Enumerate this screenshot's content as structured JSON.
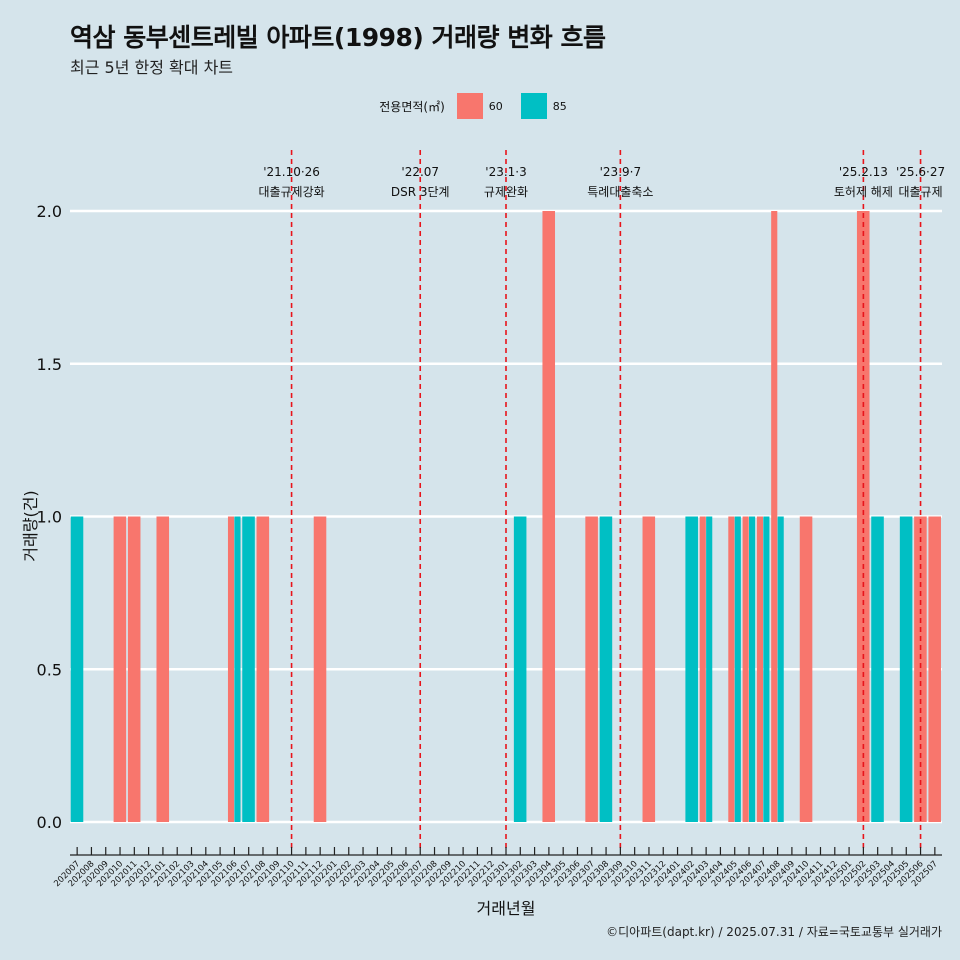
{
  "title": "역삼 동부센트레빌 아파트(1998) 거래량 변화 흐름",
  "subtitle": "최근 5년 한정 확대 차트",
  "caption": "©디아파트(dapt.kr) / 2025.07.31 / 자료=국토교통부 실거래가",
  "legend": {
    "title": "전용면적(㎡)",
    "items": [
      {
        "label": "60",
        "color": "#f8766d"
      },
      {
        "label": "85",
        "color": "#00bfc4"
      }
    ]
  },
  "chart_data": {
    "type": "bar",
    "xlabel": "거래년월",
    "ylabel": "거래량(건)",
    "ylim": [
      0,
      2
    ],
    "yticks": [
      "0.0",
      "0.5",
      "1.0",
      "1.5",
      "2.0"
    ],
    "categories": [
      "202007",
      "202008",
      "202009",
      "202010",
      "202011",
      "202012",
      "202101",
      "202102",
      "202103",
      "202104",
      "202105",
      "202106",
      "202107",
      "202108",
      "202109",
      "202110",
      "202111",
      "202112",
      "202201",
      "202202",
      "202203",
      "202204",
      "202205",
      "202206",
      "202207",
      "202208",
      "202209",
      "202210",
      "202211",
      "202212",
      "202301",
      "202302",
      "202303",
      "202304",
      "202305",
      "202306",
      "202307",
      "202308",
      "202309",
      "202310",
      "202311",
      "202312",
      "202401",
      "202402",
      "202403",
      "202404",
      "202405",
      "202406",
      "202407",
      "202408",
      "202409",
      "202410",
      "202411",
      "202412",
      "202501",
      "202502",
      "202503",
      "202504",
      "202505",
      "202506",
      "202507"
    ],
    "series": [
      {
        "name": "60",
        "color": "#f8766d",
        "points": [
          {
            "x": "202010",
            "y": 1
          },
          {
            "x": "202011",
            "y": 1
          },
          {
            "x": "202101",
            "y": 1
          },
          {
            "x": "202106",
            "y": 1
          },
          {
            "x": "202108",
            "y": 1
          },
          {
            "x": "202112",
            "y": 1
          },
          {
            "x": "202304",
            "y": 2
          },
          {
            "x": "202307",
            "y": 1
          },
          {
            "x": "202311",
            "y": 1
          },
          {
            "x": "202403",
            "y": 1
          },
          {
            "x": "202405",
            "y": 1
          },
          {
            "x": "202406",
            "y": 1
          },
          {
            "x": "202407",
            "y": 1
          },
          {
            "x": "202408",
            "y": 2
          },
          {
            "x": "202410",
            "y": 1
          },
          {
            "x": "202502",
            "y": 2
          },
          {
            "x": "202506",
            "y": 1
          },
          {
            "x": "202507",
            "y": 1
          }
        ]
      },
      {
        "name": "85",
        "color": "#00bfc4",
        "points": [
          {
            "x": "202007",
            "y": 1
          },
          {
            "x": "202106",
            "y": 1
          },
          {
            "x": "202107",
            "y": 1
          },
          {
            "x": "202302",
            "y": 1
          },
          {
            "x": "202308",
            "y": 1
          },
          {
            "x": "202402",
            "y": 1
          },
          {
            "x": "202403",
            "y": 1
          },
          {
            "x": "202405",
            "y": 1
          },
          {
            "x": "202406",
            "y": 1
          },
          {
            "x": "202407",
            "y": 1
          },
          {
            "x": "202408",
            "y": 1
          },
          {
            "x": "202503",
            "y": 1
          },
          {
            "x": "202505",
            "y": 1
          }
        ]
      }
    ],
    "events": [
      {
        "x": "202110",
        "date": "'21.10·26",
        "label": "대출규제강화"
      },
      {
        "x": "202207",
        "date": "'22.07",
        "label": "DSR 3단계"
      },
      {
        "x": "202301",
        "date": "'23.1·3",
        "label": "규제완화"
      },
      {
        "x": "202309",
        "date": "'23.9·7",
        "label": "특례대출축소"
      },
      {
        "x": "202502",
        "date": "'25.2.13",
        "label": "토허제 해제"
      },
      {
        "x": "202506",
        "date": "'25.6·27",
        "label": "대출규제"
      }
    ]
  }
}
